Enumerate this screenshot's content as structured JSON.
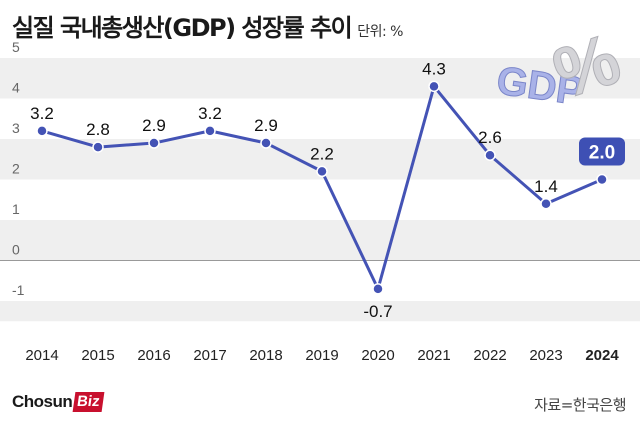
{
  "header": {
    "title": "실질 국내총생산(GDP) 성장률 추이",
    "unit": "단위: %"
  },
  "brand": {
    "name": "Chosun",
    "suffix": "Biz"
  },
  "footer": {
    "source": "자료=한국은행"
  },
  "decoration": {
    "text": "GDP %"
  },
  "colors": {
    "line": "#4453b5",
    "highlight": "#3e50b4",
    "band": "#efefef",
    "axis": "#999999"
  },
  "chart_data": {
    "type": "line",
    "x": [
      "2014",
      "2015",
      "2016",
      "2017",
      "2018",
      "2019",
      "2020",
      "2021",
      "2022",
      "2023",
      "2024"
    ],
    "series": [
      {
        "values": [
          3.2,
          2.8,
          2.9,
          3.2,
          2.9,
          2.2,
          -0.7,
          4.3,
          2.6,
          1.4,
          2.0
        ]
      }
    ],
    "labels": [
      "3.2",
      "2.8",
      "2.9",
      "3.2",
      "2.9",
      "2.2",
      "-0.7",
      "4.3",
      "2.6",
      "1.4",
      "2.0"
    ],
    "ylim": [
      -1.5,
      5
    ],
    "yticks": [
      5,
      4,
      3,
      2,
      1,
      0,
      -1
    ],
    "highlight_index": 10,
    "grid": "alternating bands",
    "xlabel": "",
    "ylabel": ""
  }
}
